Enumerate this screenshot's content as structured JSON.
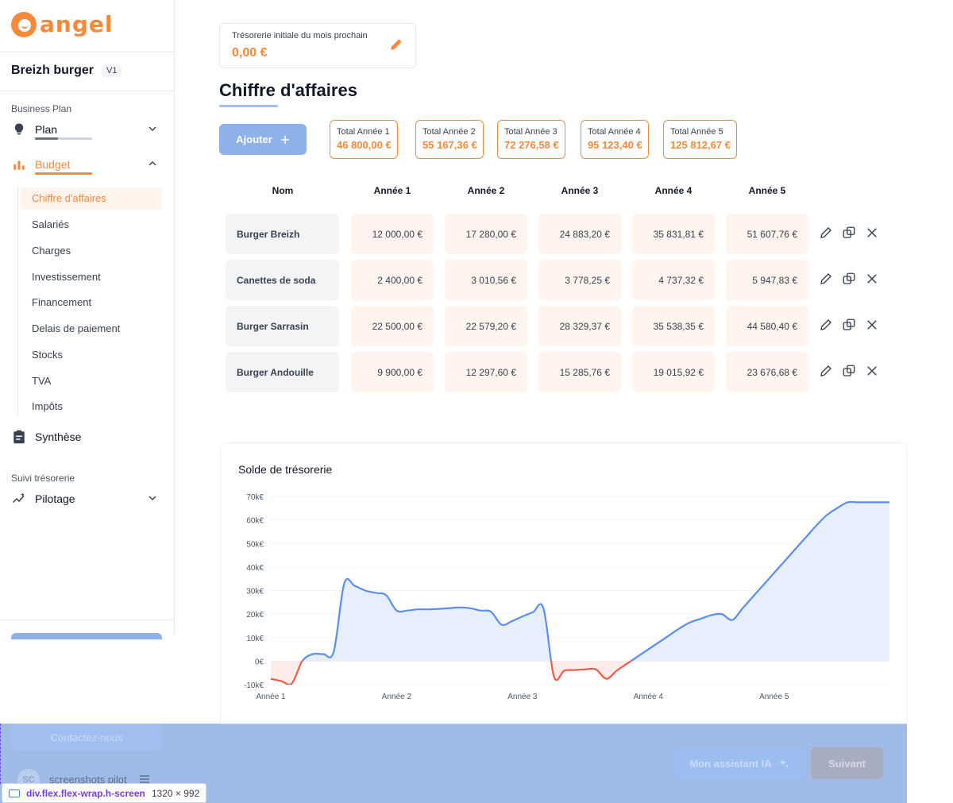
{
  "brand": {
    "name": "angel",
    "color": "#f7893b"
  },
  "project": {
    "name": "Breizh burger",
    "version": "V1"
  },
  "sidebar": {
    "business_plan_label": "Business Plan",
    "plan_label": "Plan",
    "plan_progress": 0.4,
    "budget_label": "Budget",
    "budget_progress": 1.0,
    "sub_items": [
      "Chiffre d'affaires",
      "Salariés",
      "Charges",
      "Investissement",
      "Financement",
      "Delais de paiement",
      "Stocks",
      "TVA",
      "Impôts"
    ],
    "active_sub_item": "Chiffre d'affaires",
    "synthese_label": "Synthèse",
    "suivi_label": "Suivi trésorerie",
    "pilotage_label": "Pilotage",
    "contact_label": "Contactez-nous",
    "user_initials": "SC",
    "user_name": "screenshots pilot"
  },
  "treso": {
    "label": "Trésorerie initiale du mois prochain",
    "value": "0,00 €"
  },
  "page": {
    "title": "Chiffre d'affaires",
    "add_label": "Ajouter"
  },
  "totals": [
    {
      "label": "Total Année 1",
      "value": "46 800,00 €"
    },
    {
      "label": "Total Année 2",
      "value": "55 167,36 €"
    },
    {
      "label": "Total Année 3",
      "value": "72 276,58 €"
    },
    {
      "label": "Total Année 4",
      "value": "95 123,40 €"
    },
    {
      "label": "Total Année 5",
      "value": "125 812,67 €"
    }
  ],
  "table": {
    "headers": [
      "Nom",
      "Année 1",
      "Année 2",
      "Année 3",
      "Année 4",
      "Année 5"
    ],
    "rows": [
      {
        "name": "Burger Breizh",
        "values": [
          "12 000,00 €",
          "17 280,00 €",
          "24 883,20 €",
          "35 831,81 €",
          "51 607,76 €"
        ]
      },
      {
        "name": "Canettes de soda",
        "values": [
          "2 400,00 €",
          "3 010,56 €",
          "3 778,25 €",
          "4 737,32 €",
          "5 947,83 €"
        ]
      },
      {
        "name": "Burger Sarrasin",
        "values": [
          "22 500,00 €",
          "22 579,20 €",
          "28 329,37 €",
          "35 538,35 €",
          "44 580,40 €"
        ]
      },
      {
        "name": "Burger Andouille",
        "values": [
          "9 900,00 €",
          "12 297,60 €",
          "15 285,76 €",
          "19 015,92 €",
          "23 676,68 €"
        ]
      }
    ]
  },
  "footer": {
    "ai_label": "Mon assistant IA",
    "next_label": "Suivant"
  },
  "devtools": {
    "selector": "div.flex.flex-wrap.h-screen",
    "size": "1320 × 992"
  },
  "colors": {
    "accent": "#f7893b",
    "primary": "#8fb1ea",
    "line_positive": "#5b8def",
    "line_negative": "#ef5b47"
  },
  "chart_data": {
    "type": "area",
    "title": "Solde de trésorerie",
    "ylim": [
      -10000,
      70000
    ],
    "yticks": [
      "-10k€",
      "0€",
      "10k€",
      "20k€",
      "30k€",
      "40k€",
      "50k€",
      "60k€",
      "70k€"
    ],
    "ytick_values": [
      -10000,
      0,
      10000,
      20000,
      30000,
      40000,
      50000,
      60000,
      70000
    ],
    "xticks": [
      "Année 1",
      "Année 2",
      "Année 3",
      "Année 4",
      "Année 5"
    ],
    "xlim": [
      0,
      59
    ],
    "grid": true,
    "x": [
      0,
      1,
      2,
      3,
      4,
      5,
      6,
      7,
      8,
      9,
      10,
      11,
      12,
      13,
      14,
      15,
      16,
      17,
      18,
      19,
      20,
      21,
      22,
      23,
      24,
      25,
      26,
      27,
      28,
      29,
      30,
      31,
      32,
      33,
      34,
      35,
      36,
      37,
      38,
      39,
      40,
      41,
      42,
      43,
      44,
      45,
      46,
      47,
      48,
      49,
      50,
      51,
      52,
      53,
      54,
      55,
      56,
      57,
      58,
      59
    ],
    "y": [
      -7500,
      -8500,
      -9500,
      0,
      3000,
      3000,
      4000,
      33000,
      32000,
      30000,
      29000,
      28000,
      21500,
      21500,
      22000,
      22000,
      22200,
      22500,
      22800,
      22500,
      21500,
      21000,
      15500,
      17000,
      19000,
      20800,
      22500,
      -6500,
      -4000,
      -3800,
      -3500,
      -3500,
      -7500,
      -4000,
      -1000,
      2000,
      5000,
      8000,
      11000,
      14000,
      16500,
      18000,
      19500,
      20000,
      17500,
      22500,
      27500,
      32500,
      37500,
      42500,
      47500,
      52500,
      57500,
      62000,
      65000,
      67500,
      67500,
      67500,
      67500,
      67500
    ]
  }
}
